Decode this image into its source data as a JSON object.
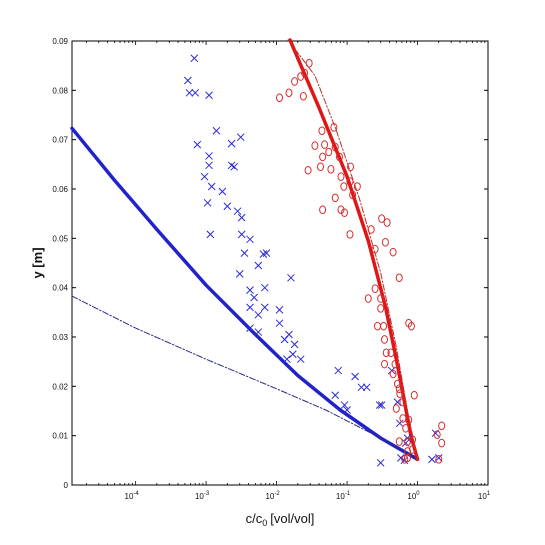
{
  "chart_data": {
    "type": "scatter",
    "title": "",
    "xlabel": "c/c",
    "xlabel_sub": "0",
    "xlabel_unit": "[vol/vol]",
    "ylabel": "y [m]",
    "x_scale": "log",
    "xlim": [
      1.25e-05,
      10
    ],
    "ylim": [
      0,
      0.09
    ],
    "grid": false,
    "legend": "none",
    "x_ticks": [
      {
        "value": 0.0001,
        "base": "10",
        "exp": "-4"
      },
      {
        "value": 0.001,
        "base": "10",
        "exp": "-3"
      },
      {
        "value": 0.01,
        "base": "10",
        "exp": "-2"
      },
      {
        "value": 0.1,
        "base": "10",
        "exp": "-1"
      },
      {
        "value": 1,
        "base": "10",
        "exp": "0"
      },
      {
        "value": 10,
        "base": "10",
        "exp": "1"
      }
    ],
    "y_ticks": [
      {
        "value": 0,
        "label": "0"
      },
      {
        "value": 0.01,
        "label": "0.01"
      },
      {
        "value": 0.02,
        "label": "0.02"
      },
      {
        "value": 0.03,
        "label": "0.03"
      },
      {
        "value": 0.04,
        "label": "0.04"
      },
      {
        "value": 0.05,
        "label": "0.05"
      },
      {
        "value": 0.06,
        "label": "0.06"
      },
      {
        "value": 0.07,
        "label": "0.07"
      },
      {
        "value": 0.08,
        "label": "0.08"
      },
      {
        "value": 0.09,
        "label": "0.09"
      }
    ],
    "series": [
      {
        "marker": "x",
        "color": "#2b2bd6",
        "points": [
          [
            0.00055,
            0.082
          ],
          [
            0.00068,
            0.0865
          ],
          [
            0.00058,
            0.0795
          ],
          [
            0.0007,
            0.0795
          ],
          [
            0.0011,
            0.079
          ],
          [
            0.0014,
            0.0718
          ],
          [
            0.00075,
            0.069
          ],
          [
            0.0011,
            0.0667
          ],
          [
            0.0011,
            0.0648
          ],
          [
            0.0023,
            0.0648
          ],
          [
            0.0025,
            0.0645
          ],
          [
            0.00095,
            0.0625
          ],
          [
            0.0023,
            0.0692
          ],
          [
            0.0031,
            0.0705
          ],
          [
            0.0012,
            0.0605
          ],
          [
            0.0017,
            0.0595
          ],
          [
            0.00105,
            0.0572
          ],
          [
            0.002,
            0.0565
          ],
          [
            0.0028,
            0.0555
          ],
          [
            0.0032,
            0.0542
          ],
          [
            0.00115,
            0.0508
          ],
          [
            0.0032,
            0.0508
          ],
          [
            0.0042,
            0.0498
          ],
          [
            0.0035,
            0.047
          ],
          [
            0.0065,
            0.0468
          ],
          [
            0.0072,
            0.047
          ],
          [
            0.0055,
            0.0445
          ],
          [
            0.003,
            0.0428
          ],
          [
            0.0068,
            0.04
          ],
          [
            0.0042,
            0.0395
          ],
          [
            0.0048,
            0.038
          ],
          [
            0.016,
            0.042
          ],
          [
            0.0042,
            0.036
          ],
          [
            0.0068,
            0.036
          ],
          [
            0.0055,
            0.0345
          ],
          [
            0.011,
            0.0355
          ],
          [
            0.0042,
            0.0318
          ],
          [
            0.0055,
            0.031
          ],
          [
            0.011,
            0.0328
          ],
          [
            0.015,
            0.0305
          ],
          [
            0.013,
            0.0295
          ],
          [
            0.018,
            0.0285
          ],
          [
            0.017,
            0.0265
          ],
          [
            0.022,
            0.0255
          ],
          [
            0.014,
            0.0255
          ],
          [
            0.075,
            0.0232
          ],
          [
            0.13,
            0.022
          ],
          [
            0.16,
            0.0198
          ],
          [
            0.19,
            0.0198
          ],
          [
            0.068,
            0.0182
          ],
          [
            0.092,
            0.0162
          ],
          [
            0.1,
            0.0152
          ],
          [
            0.29,
            0.0162
          ],
          [
            0.31,
            0.0162
          ],
          [
            0.43,
            0.0232
          ],
          [
            0.52,
            0.0168
          ],
          [
            0.56,
            0.0125
          ],
          [
            0.72,
            0.0095
          ],
          [
            0.68,
            0.0085
          ],
          [
            0.3,
            0.0045
          ],
          [
            0.58,
            0.0055
          ],
          [
            0.65,
            0.005
          ],
          [
            1.8,
            0.0105
          ],
          [
            2.0,
            0.0055
          ],
          [
            1.6,
            0.0052
          ]
        ]
      },
      {
        "marker": "o",
        "color": "#d92b2b",
        "points": [
          [
            0.025,
            0.0835
          ],
          [
            0.029,
            0.0855
          ],
          [
            0.022,
            0.0828
          ],
          [
            0.018,
            0.0818
          ],
          [
            0.024,
            0.0788
          ],
          [
            0.015,
            0.0795
          ],
          [
            0.011,
            0.0785
          ],
          [
            0.044,
            0.0718
          ],
          [
            0.065,
            0.0725
          ],
          [
            0.035,
            0.0688
          ],
          [
            0.048,
            0.069
          ],
          [
            0.055,
            0.0675
          ],
          [
            0.068,
            0.0685
          ],
          [
            0.045,
            0.0665
          ],
          [
            0.078,
            0.0665
          ],
          [
            0.042,
            0.0645
          ],
          [
            0.059,
            0.064
          ],
          [
            0.028,
            0.0638
          ],
          [
            0.112,
            0.0645
          ],
          [
            0.082,
            0.0625
          ],
          [
            0.11,
            0.0615
          ],
          [
            0.09,
            0.0605
          ],
          [
            0.14,
            0.0605
          ],
          [
            0.068,
            0.0582
          ],
          [
            0.12,
            0.0588
          ],
          [
            0.045,
            0.0558
          ],
          [
            0.082,
            0.0558
          ],
          [
            0.092,
            0.0552
          ],
          [
            0.31,
            0.054
          ],
          [
            0.37,
            0.0532
          ],
          [
            0.11,
            0.0508
          ],
          [
            0.22,
            0.0518
          ],
          [
            0.35,
            0.0492
          ],
          [
            0.25,
            0.0478
          ],
          [
            0.45,
            0.0472
          ],
          [
            0.55,
            0.042
          ],
          [
            0.25,
            0.0398
          ],
          [
            0.2,
            0.0378
          ],
          [
            0.3,
            0.0378
          ],
          [
            0.3,
            0.0358
          ],
          [
            0.33,
            0.0322
          ],
          [
            0.27,
            0.0322
          ],
          [
            0.75,
            0.0328
          ],
          [
            0.82,
            0.0322
          ],
          [
            0.34,
            0.0295
          ],
          [
            0.36,
            0.0268
          ],
          [
            0.42,
            0.0268
          ],
          [
            0.34,
            0.0245
          ],
          [
            0.48,
            0.0245
          ],
          [
            0.45,
            0.0225
          ],
          [
            0.52,
            0.0205
          ],
          [
            0.55,
            0.0195
          ],
          [
            0.56,
            0.0185
          ],
          [
            0.62,
            0.0168
          ],
          [
            0.5,
            0.0155
          ],
          [
            0.9,
            0.0182
          ],
          [
            0.62,
            0.0135
          ],
          [
            0.75,
            0.0132
          ],
          [
            0.68,
            0.0115
          ],
          [
            0.55,
            0.0088
          ],
          [
            0.72,
            0.0088
          ],
          [
            0.85,
            0.0092
          ],
          [
            2.2,
            0.012
          ],
          [
            1.9,
            0.0102
          ],
          [
            2.2,
            0.0085
          ],
          [
            0.72,
            0.0068
          ],
          [
            0.85,
            0.0072
          ],
          [
            0.72,
            0.0055
          ],
          [
            0.66,
            0.0052
          ],
          [
            2.0,
            0.0052
          ]
        ]
      },
      {
        "type": "line",
        "color": "#2222cc",
        "style": "solid",
        "width": 3.5,
        "points": [
          [
            1.25e-05,
            0.0723
          ],
          [
            5e-05,
            0.0618
          ],
          [
            0.0002,
            0.0518
          ],
          [
            0.001,
            0.0405
          ],
          [
            0.005,
            0.0305
          ],
          [
            0.02,
            0.0222
          ],
          [
            0.08,
            0.0152
          ],
          [
            0.3,
            0.0095
          ],
          [
            1,
            0.0052
          ]
        ]
      },
      {
        "type": "line",
        "color": "#2a2a88",
        "style": "dashdot",
        "width": 1,
        "points": [
          [
            1.25e-05,
            0.0383
          ],
          [
            0.0001,
            0.0318
          ],
          [
            0.001,
            0.0255
          ],
          [
            0.01,
            0.0195
          ],
          [
            0.05,
            0.0152
          ],
          [
            0.2,
            0.0108
          ],
          [
            0.6,
            0.0072
          ],
          [
            1,
            0.0052
          ]
        ]
      },
      {
        "type": "line",
        "color": "#e01515",
        "style": "solid",
        "width": 3.5,
        "points": [
          [
            0.0155,
            0.0902
          ],
          [
            0.04,
            0.0765
          ],
          [
            0.1,
            0.0625
          ],
          [
            0.2,
            0.0495
          ],
          [
            0.35,
            0.0362
          ],
          [
            0.5,
            0.0255
          ],
          [
            0.66,
            0.0165
          ],
          [
            0.8,
            0.0102
          ],
          [
            1,
            0.0052
          ]
        ]
      },
      {
        "type": "line",
        "color": "#b83030",
        "style": "dashdot",
        "width": 1,
        "points": [
          [
            0.0145,
            0.0902
          ],
          [
            0.035,
            0.083
          ],
          [
            0.07,
            0.072
          ],
          [
            0.15,
            0.058
          ],
          [
            0.3,
            0.043
          ],
          [
            0.5,
            0.028
          ],
          [
            0.72,
            0.015
          ],
          [
            1,
            0.0052
          ]
        ]
      }
    ]
  }
}
